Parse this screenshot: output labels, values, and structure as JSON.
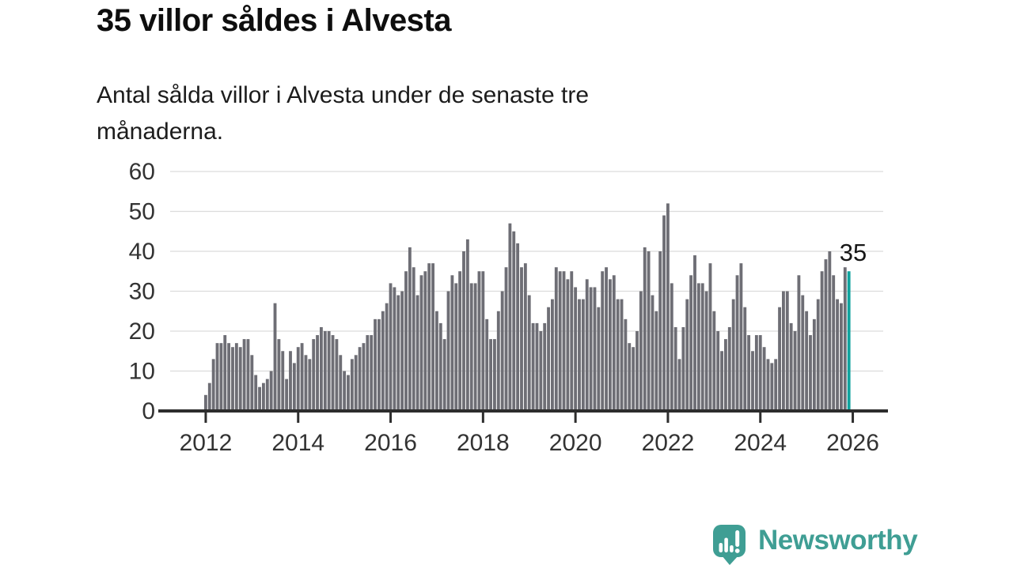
{
  "title": "35 villor såldes i Alvesta",
  "subtitle": {
    "full": "Antal sålda villor i Alvesta under de senaste tre månaderna.",
    "line1": "Antal sålda villor i Alvesta under de senaste tre",
    "line2": "månaderna."
  },
  "branding": {
    "name": "Newsworthy",
    "brand_color": "#3f9e94"
  },
  "chart_data": {
    "type": "bar",
    "title": "35 villor såldes i Alvesta",
    "subtitle": "Antal sålda villor i Alvesta under de senaste tre månaderna.",
    "xlabel": "",
    "ylabel": "",
    "x_unit": "month",
    "x_start": "2012-01",
    "x_end": "2025-12",
    "x_tick_labels": [
      "2012",
      "2014",
      "2016",
      "2018",
      "2020",
      "2022",
      "2024",
      "2026"
    ],
    "y_ticks": [
      0,
      10,
      20,
      30,
      40,
      50,
      60
    ],
    "ylim": [
      0,
      60
    ],
    "grid": "horizontal-only",
    "legend": "none",
    "bar_color": "#6e6e75",
    "highlight_color": "#10a39e",
    "highlight_index": 167,
    "annotation": {
      "text": "35",
      "target": "last-bar"
    },
    "values": [
      4,
      7,
      13,
      17,
      17,
      19,
      17,
      16,
      17,
      16,
      18,
      18,
      14,
      9,
      6,
      7,
      8,
      10,
      27,
      18,
      15,
      8,
      15,
      12,
      16,
      17,
      14,
      13,
      18,
      19,
      21,
      20,
      20,
      19,
      18,
      14,
      10,
      9,
      13,
      14,
      16,
      17,
      19,
      19,
      23,
      23,
      25,
      27,
      32,
      31,
      29,
      30,
      35,
      41,
      36,
      29,
      34,
      35,
      37,
      37,
      25,
      22,
      18,
      30,
      34,
      32,
      35,
      40,
      43,
      32,
      32,
      35,
      35,
      23,
      18,
      18,
      25,
      30,
      36,
      47,
      45,
      42,
      36,
      37,
      29,
      22,
      22,
      20,
      22,
      26,
      28,
      36,
      35,
      35,
      33,
      35,
      31,
      28,
      28,
      33,
      31,
      31,
      26,
      35,
      36,
      33,
      34,
      28,
      28,
      23,
      17,
      16,
      20,
      30,
      41,
      40,
      29,
      25,
      40,
      49,
      52,
      32,
      21,
      13,
      21,
      28,
      34,
      39,
      32,
      32,
      30,
      37,
      25,
      20,
      15,
      18,
      21,
      28,
      34,
      37,
      26,
      19,
      15,
      19,
      19,
      16,
      13,
      12,
      13,
      26,
      30,
      30,
      22,
      20,
      34,
      29,
      25,
      19,
      23,
      28,
      35,
      38,
      40,
      34,
      28,
      27,
      36,
      35
    ]
  }
}
